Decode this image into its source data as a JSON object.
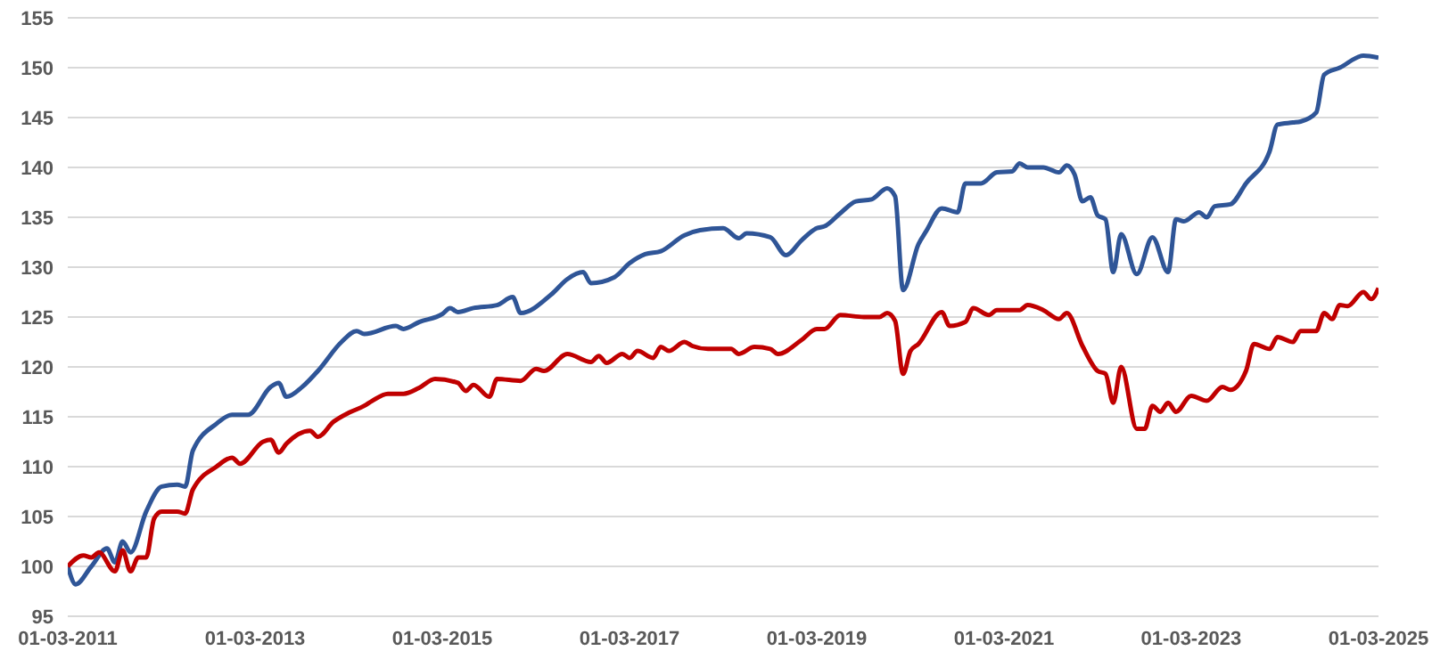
{
  "chart_data": {
    "type": "line",
    "xlim": [
      "2011-03-01",
      "2025-03-01"
    ],
    "xticks": [
      {
        "value": "2011-03-01",
        "label": "01-03-2011"
      },
      {
        "value": "2013-03-01",
        "label": "01-03-2013"
      },
      {
        "value": "2015-03-01",
        "label": "01-03-2015"
      },
      {
        "value": "2017-03-01",
        "label": "01-03-2017"
      },
      {
        "value": "2019-03-01",
        "label": "01-03-2019"
      },
      {
        "value": "2021-03-01",
        "label": "01-03-2021"
      },
      {
        "value": "2023-03-01",
        "label": "01-03-2023"
      },
      {
        "value": "2025-03-01",
        "label": "01-03-2025"
      }
    ],
    "ylim": [
      95,
      155
    ],
    "yticks": [
      95,
      100,
      105,
      110,
      115,
      120,
      125,
      130,
      135,
      140,
      145,
      150,
      155
    ],
    "grid": "y",
    "legend": false,
    "marker": "none",
    "line_style": "solid",
    "series": [
      {
        "color": "#2f5597",
        "x": [
          "2011-03",
          "2011-04",
          "2011-06",
          "2011-08",
          "2011-09",
          "2011-10",
          "2011-11",
          "2012-01",
          "2012-03",
          "2012-05",
          "2012-06",
          "2012-07",
          "2012-10",
          "2012-12",
          "2013-02",
          "2013-05",
          "2013-06",
          "2013-07",
          "2013-09",
          "2013-11",
          "2014-02",
          "2014-04",
          "2014-05",
          "2014-09",
          "2014-10",
          "2014-12",
          "2015-03",
          "2015-04",
          "2015-05",
          "2015-07",
          "2015-10",
          "2015-12",
          "2016-01",
          "2016-05",
          "2016-07",
          "2016-09",
          "2016-10",
          "2017-01",
          "2017-03",
          "2017-05",
          "2017-07",
          "2017-10",
          "2017-12",
          "2018-03",
          "2018-05",
          "2018-06",
          "2018-09",
          "2018-11",
          "2019-01",
          "2019-03",
          "2019-04",
          "2019-06",
          "2019-08",
          "2019-10",
          "2019-12",
          "2020-01",
          "2020-02",
          "2020-04",
          "2020-05",
          "2020-07",
          "2020-09",
          "2020-10",
          "2020-12",
          "2021-02",
          "2021-04",
          "2021-05",
          "2021-06",
          "2021-08",
          "2021-10",
          "2021-11",
          "2021-12",
          "2022-01",
          "2022-02",
          "2022-03",
          "2022-04",
          "2022-05",
          "2022-06",
          "2022-08",
          "2022-10",
          "2022-12",
          "2023-01",
          "2023-02",
          "2023-04",
          "2023-05",
          "2023-06",
          "2023-08",
          "2023-10",
          "2024-01",
          "2024-02",
          "2024-04",
          "2024-05",
          "2024-07",
          "2024-08",
          "2024-10",
          "2025-01",
          "2025-03"
        ],
        "values": [
          100,
          98.2,
          100,
          101.8,
          100.4,
          102.5,
          101.4,
          105.5,
          108,
          108.2,
          108,
          111.6,
          114.3,
          115.2,
          115.2,
          118,
          118.4,
          117,
          118,
          119.6,
          122.5,
          123.6,
          123.3,
          124.1,
          123.8,
          124.5,
          125.3,
          125.9,
          125.5,
          125.9,
          126.2,
          127,
          125.4,
          127.3,
          128.8,
          129.5,
          128.4,
          129,
          130.4,
          131.3,
          131.6,
          133.2,
          133.7,
          133.9,
          132.9,
          133.4,
          133,
          131.2,
          132.7,
          133.9,
          134.1,
          135.4,
          136.6,
          136.8,
          137.9,
          137.1,
          127.7,
          132.3,
          133.6,
          135.9,
          135.5,
          138.4,
          138.4,
          139.5,
          139.6,
          140.4,
          140,
          140,
          139.5,
          140.2,
          139.3,
          136.6,
          137,
          135.2,
          134.8,
          129.5,
          133.3,
          129.3,
          133,
          129.5,
          134.8,
          134.6,
          135.5,
          135,
          136.1,
          136.3,
          138.4,
          141.6,
          144.3,
          144.5,
          144.6,
          145.5,
          149.3,
          150,
          151.2,
          151
        ]
      },
      {
        "color": "#c00000",
        "x": [
          "2011-03",
          "2011-05",
          "2011-06",
          "2011-07",
          "2011-09",
          "2011-10",
          "2011-11",
          "2011-12",
          "2012-01",
          "2012-02",
          "2012-03",
          "2012-05",
          "2012-06",
          "2012-07",
          "2012-10",
          "2012-12",
          "2013-01",
          "2013-04",
          "2013-05",
          "2013-06",
          "2013-07",
          "2013-10",
          "2013-11",
          "2014-01",
          "2014-03",
          "2014-05",
          "2014-06",
          "2014-08",
          "2014-10",
          "2014-12",
          "2015-02",
          "2015-05",
          "2015-06",
          "2015-07",
          "2015-09",
          "2015-10",
          "2016-01",
          "2016-03",
          "2016-04",
          "2016-07",
          "2016-10",
          "2016-11",
          "2016-12",
          "2017-02",
          "2017-03",
          "2017-04",
          "2017-06",
          "2017-07",
          "2017-08",
          "2017-10",
          "2017-11",
          "2018-01",
          "2018-04",
          "2018-05",
          "2018-07",
          "2018-09",
          "2018-10",
          "2019-01",
          "2019-03",
          "2019-04",
          "2019-06",
          "2019-09",
          "2019-11",
          "2019-12",
          "2020-01",
          "2020-02",
          "2020-03",
          "2020-04",
          "2020-07",
          "2020-08",
          "2020-10",
          "2020-11",
          "2021-01",
          "2021-02",
          "2021-05",
          "2021-06",
          "2021-08",
          "2021-10",
          "2021-11",
          "2022-01",
          "2022-03",
          "2022-04",
          "2022-05",
          "2022-06",
          "2022-08",
          "2022-09",
          "2022-10",
          "2022-11",
          "2022-12",
          "2023-01",
          "2023-03",
          "2023-05",
          "2023-07",
          "2023-08",
          "2023-10",
          "2023-11",
          "2024-01",
          "2024-02",
          "2024-04",
          "2024-05",
          "2024-07",
          "2024-08",
          "2024-09",
          "2024-10",
          "2024-11",
          "2025-01",
          "2025-02",
          "2025-03"
        ],
        "values": [
          100,
          101.1,
          100.9,
          101.4,
          99.5,
          101.6,
          99.5,
          100.9,
          100.9,
          104.8,
          105.5,
          105.5,
          105.3,
          107.7,
          110,
          110.9,
          110.3,
          112.5,
          112.7,
          111.4,
          112.3,
          113.6,
          113,
          114.5,
          115.4,
          116.1,
          116.6,
          117.3,
          117.3,
          117.9,
          118.8,
          118.4,
          117.6,
          118.2,
          117,
          118.8,
          118.6,
          119.8,
          119.6,
          121.3,
          120.5,
          121.1,
          120.4,
          121.3,
          120.9,
          121.6,
          120.9,
          122,
          121.6,
          122.5,
          122.1,
          121.8,
          121.8,
          121.3,
          122,
          121.8,
          121.3,
          122.7,
          123.8,
          123.8,
          125.2,
          125,
          125,
          125.4,
          124.6,
          119.3,
          121.6,
          122.3,
          125.5,
          124.1,
          124.5,
          125.9,
          125.2,
          125.7,
          125.7,
          126.2,
          125.7,
          124.8,
          125.4,
          122.1,
          119.6,
          119.3,
          116.4,
          120,
          113.8,
          113.8,
          116.1,
          115.5,
          116.4,
          115.5,
          117.1,
          116.6,
          118,
          117.7,
          119.6,
          122.3,
          121.8,
          123,
          122.5,
          123.6,
          123.6,
          125.4,
          124.8,
          126.2,
          126.1,
          127.5,
          126.8,
          127.9
        ]
      }
    ]
  }
}
